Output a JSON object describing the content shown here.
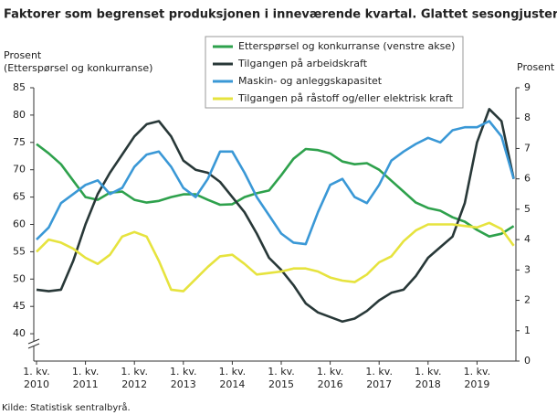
{
  "chart_data": {
    "type": "line",
    "title": "Faktorer som begrenset produksjonen i inneværende kvartal. Glattet sesongjustert",
    "y_label": "Prosent\n(Etterspørsel  og konkurranse)",
    "y2_label": "Prosent",
    "source": "Kilde: Statistisk sentralbyrå.",
    "legend": "top",
    "categories": [
      "1. kv.\n2010",
      null,
      null,
      null,
      "1. kv.\n2011",
      null,
      null,
      null,
      "1. kv.\n2012",
      null,
      null,
      null,
      "1. kv.\n2013",
      null,
      null,
      null,
      "1. kv.\n2014",
      null,
      null,
      null,
      "1. kv.\n2015",
      null,
      null,
      null,
      "1. kv.\n2016",
      null,
      null,
      null,
      "1. kv.\n2017",
      null,
      null,
      null,
      "1. kv.\n2018",
      null,
      null,
      null,
      "1. kv.\n2019",
      null,
      null,
      null
    ],
    "ylim": [
      35,
      85
    ],
    "yticks": [
      40,
      45,
      50,
      55,
      60,
      65,
      70,
      75,
      80,
      85
    ],
    "y2lim": [
      0,
      9
    ],
    "y2ticks": [
      0,
      1,
      2,
      3,
      4,
      5,
      6,
      7,
      8,
      9
    ],
    "series": [
      {
        "name": "Etterspørsel og konkurranse (venstre akse)",
        "color": "#2ea14c",
        "values": [
          74.7,
          73,
          71,
          68,
          65,
          64.5,
          65.8,
          66,
          64.5,
          64,
          64.3,
          65,
          65.5,
          65.5,
          64.5,
          63.6,
          63.7,
          65,
          65.7,
          66.2,
          69,
          72,
          73.8,
          73.6,
          73,
          71.5,
          71,
          71.2,
          70,
          68,
          66,
          64,
          63,
          62.5,
          61.3,
          60.5,
          59,
          57.8,
          58.3,
          59.7
        ]
      },
      {
        "name": "Tilgangen på arbeidskraft",
        "color": "#283838",
        "axis": "y2",
        "values": [
          2.35,
          2.3,
          2.35,
          3.3,
          4.5,
          5.5,
          6.2,
          6.8,
          7.4,
          7.8,
          7.9,
          7.4,
          6.6,
          6.3,
          6.2,
          5.9,
          5.4,
          4.9,
          4.2,
          3.4,
          3.0,
          2.5,
          1.9,
          1.6,
          1.45,
          1.3,
          1.4,
          1.65,
          2.0,
          2.25,
          2.35,
          2.8,
          3.4,
          3.75,
          4.1,
          5.2,
          7.2,
          8.3,
          7.9,
          6.0
        ]
      },
      {
        "name": "Maskin- og anleggskapasitet",
        "color": "#3a98d6",
        "axis": "y2",
        "values": [
          4.0,
          4.4,
          5.2,
          5.5,
          5.8,
          5.95,
          5.5,
          5.7,
          6.4,
          6.8,
          6.9,
          6.4,
          5.7,
          5.4,
          6.0,
          6.9,
          6.9,
          6.2,
          5.4,
          4.8,
          4.2,
          3.9,
          3.85,
          4.9,
          5.8,
          6.0,
          5.4,
          5.2,
          5.8,
          6.6,
          6.9,
          7.15,
          7.35,
          7.2,
          7.6,
          7.7,
          7.7,
          7.9,
          7.4,
          6.0
        ]
      },
      {
        "name": "Tilgangen på råstoff og/eller elektrisk kraft",
        "color": "#e6e33e",
        "axis": "y2",
        "values": [
          3.6,
          4.0,
          3.9,
          3.7,
          3.4,
          3.2,
          3.5,
          4.1,
          4.25,
          4.1,
          3.3,
          2.35,
          2.3,
          2.7,
          3.1,
          3.45,
          3.5,
          3.2,
          2.85,
          2.9,
          2.95,
          3.05,
          3.05,
          2.95,
          2.75,
          2.65,
          2.6,
          2.85,
          3.25,
          3.45,
          3.95,
          4.3,
          4.5,
          4.5,
          4.5,
          4.45,
          4.4,
          4.55,
          4.35,
          3.8
        ]
      }
    ]
  }
}
